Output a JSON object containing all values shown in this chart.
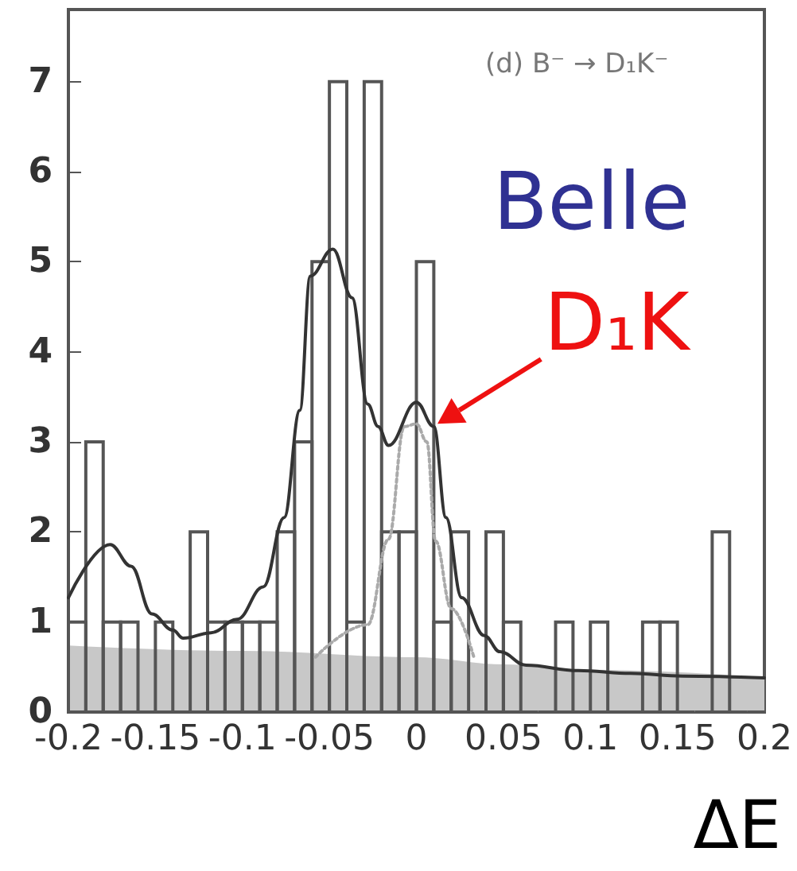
{
  "chart_data": {
    "type": "histogram",
    "xlabel": "ΔE",
    "color": "#555555",
    "bins": [
      -0.2,
      -0.19,
      -0.18,
      -0.17,
      -0.16,
      -0.15,
      -0.14,
      -0.13,
      -0.12,
      -0.11,
      -0.1,
      -0.09,
      -0.08,
      -0.07,
      -0.06,
      -0.05,
      -0.04,
      -0.03,
      -0.02,
      -0.01,
      0,
      0.01,
      0.02,
      0.03,
      0.04,
      0.05,
      0.06,
      0.07,
      0.08,
      0.09,
      0.1,
      0.11,
      0.12,
      0.13,
      0.14,
      0.15,
      0.16,
      0.17,
      0.18,
      0.19,
      0.2
    ],
    "values": [
      1,
      3,
      1,
      1,
      0,
      1,
      0,
      2,
      1,
      1,
      1,
      1,
      2,
      3,
      5,
      7,
      1,
      7,
      2,
      2,
      5,
      1,
      2,
      0,
      2,
      1,
      0,
      0,
      1,
      0,
      1,
      0,
      0,
      1,
      1,
      0,
      0,
      2,
      0,
      0
    ],
    "series": [
      {
        "type": "area",
        "color": "#c8c8c8",
        "x": [
          -0.2,
          -0.1,
          0,
          0.05,
          0.1,
          0.2
        ],
        "values": [
          0.73,
          0.67,
          0.6,
          0.52,
          0.46,
          0.38
        ]
      },
      {
        "type": "line",
        "color": "#aaaaaa",
        "line_style": "dotted",
        "x": [
          -0.058,
          -0.028,
          -0.016,
          -0.007,
          0,
          0.006,
          0.011,
          0.02,
          0.033
        ],
        "values": [
          0.61,
          0.97,
          1.92,
          3.17,
          3.2,
          3.0,
          1.9,
          1.15,
          0.61
        ]
      },
      {
        "type": "line",
        "color": "#333333",
        "line_style": "solid",
        "x": [
          -0.2,
          -0.176,
          -0.164,
          -0.152,
          -0.14,
          -0.134,
          -0.118,
          -0.103,
          -0.088,
          -0.076,
          -0.067,
          -0.061,
          -0.048,
          -0.037,
          -0.028,
          -0.022,
          -0.016,
          0,
          0.01,
          0.017,
          0.026,
          0.039,
          0.048,
          0.063,
          0.093,
          0.123,
          0.153,
          0.2
        ],
        "values": [
          1.27,
          1.86,
          1.62,
          1.09,
          0.91,
          0.82,
          0.88,
          1.03,
          1.39,
          2.16,
          3.35,
          4.84,
          5.14,
          4.6,
          3.42,
          3.17,
          2.96,
          3.44,
          3.17,
          2.16,
          1.27,
          0.85,
          0.67,
          0.52,
          0.46,
          0.43,
          0.4,
          0.38
        ]
      }
    ],
    "xlim": [
      -0.2,
      0.2
    ],
    "xticks": [
      -0.2,
      -0.15,
      -0.1,
      -0.05,
      0,
      0.05,
      0.1,
      0.15,
      0.2
    ],
    "ylim": [
      0,
      7.8
    ],
    "yticks": [
      0,
      1,
      2,
      3,
      4,
      5,
      6,
      7
    ],
    "grid": false,
    "annotations": [
      "(d) B⁻ → D₁K⁻",
      "Belle",
      {
        "text": "D₁K",
        "x": 0.012,
        "y": 3.2
      }
    ]
  }
}
